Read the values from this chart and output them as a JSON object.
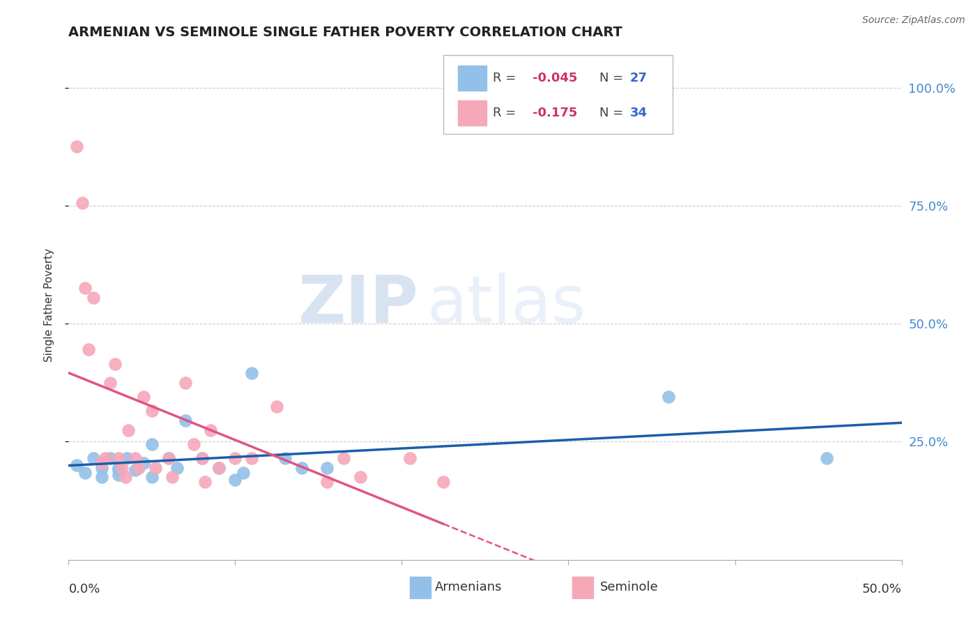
{
  "title": "ARMENIAN VS SEMINOLE SINGLE FATHER POVERTY CORRELATION CHART",
  "source": "Source: ZipAtlas.com",
  "ylabel": "Single Father Poverty",
  "ytick_labels": [
    "100.0%",
    "75.0%",
    "50.0%",
    "25.0%"
  ],
  "ytick_values": [
    1.0,
    0.75,
    0.5,
    0.25
  ],
  "xlim": [
    0.0,
    0.5
  ],
  "ylim": [
    0.0,
    1.08
  ],
  "armenian_R": -0.045,
  "armenian_N": 27,
  "seminole_R": -0.175,
  "seminole_N": 34,
  "armenian_color": "#92c0e8",
  "seminole_color": "#f5a8b8",
  "armenian_line_color": "#1a5faa",
  "seminole_line_color": "#e05580",
  "armenian_x": [
    0.005,
    0.01,
    0.015,
    0.02,
    0.02,
    0.025,
    0.03,
    0.03,
    0.03,
    0.035,
    0.04,
    0.045,
    0.05,
    0.05,
    0.06,
    0.065,
    0.07,
    0.08,
    0.09,
    0.1,
    0.105,
    0.11,
    0.13,
    0.14,
    0.155,
    0.36,
    0.455
  ],
  "armenian_y": [
    0.2,
    0.185,
    0.215,
    0.195,
    0.175,
    0.215,
    0.195,
    0.18,
    0.19,
    0.215,
    0.19,
    0.205,
    0.175,
    0.245,
    0.215,
    0.195,
    0.295,
    0.215,
    0.195,
    0.17,
    0.185,
    0.395,
    0.215,
    0.195,
    0.195,
    0.345,
    0.215
  ],
  "seminole_x": [
    0.005,
    0.008,
    0.01,
    0.012,
    0.015,
    0.02,
    0.022,
    0.025,
    0.028,
    0.03,
    0.032,
    0.034,
    0.036,
    0.04,
    0.042,
    0.045,
    0.05,
    0.052,
    0.06,
    0.062,
    0.07,
    0.075,
    0.08,
    0.082,
    0.085,
    0.09,
    0.1,
    0.11,
    0.125,
    0.155,
    0.165,
    0.175,
    0.205,
    0.225
  ],
  "seminole_y": [
    0.875,
    0.755,
    0.575,
    0.445,
    0.555,
    0.205,
    0.215,
    0.375,
    0.415,
    0.215,
    0.195,
    0.175,
    0.275,
    0.215,
    0.195,
    0.345,
    0.315,
    0.195,
    0.215,
    0.175,
    0.375,
    0.245,
    0.215,
    0.165,
    0.275,
    0.195,
    0.215,
    0.215,
    0.325,
    0.165,
    0.215,
    0.175,
    0.215,
    0.165
  ],
  "watermark_zip": "ZIP",
  "watermark_atlas": "atlas",
  "background_color": "#ffffff",
  "grid_color": "#cccccc",
  "legend_R_color": "#cc3366",
  "legend_N_color": "#3366cc",
  "legend_box_color": "#cccccc"
}
